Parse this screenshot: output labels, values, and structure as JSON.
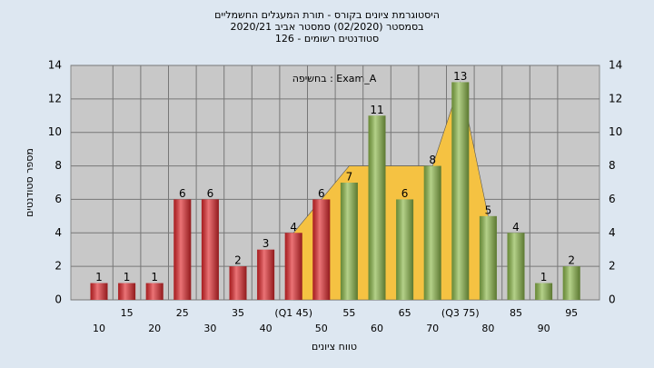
{
  "chart_data": {
    "type": "bar",
    "title": "היסטוגרמת ציונים בקורס - תורת המעגלים החשמליים",
    "subtitle": "בסמסטר  (02/2020)  סמסטר אביב 2020/21",
    "subtitle2": "סטודנטים רשומים - 126",
    "annotation": "בחשיפה : Exam_A",
    "x_label": "טווח ציונים",
    "y_label": "מספר סטודנטים",
    "categories": [
      "10",
      "15",
      "20",
      "25",
      "30",
      "35",
      "40",
      "(Q1 45)",
      "50",
      "55",
      "60",
      "65",
      "70",
      "(Q3 75)",
      "80",
      "85",
      "90",
      "95"
    ],
    "values": [
      1,
      1,
      1,
      6,
      6,
      2,
      3,
      4,
      6,
      7,
      11,
      6,
      8,
      13,
      5,
      4,
      1,
      2
    ],
    "colors": [
      "#e0282c",
      "#e0282c",
      "#e0282c",
      "#e0282c",
      "#e0282c",
      "#e0282c",
      "#e0282c",
      "#e0282c",
      "#e0282c",
      "#8cb84a",
      "#8cb84a",
      "#8cb84a",
      "#8cb84a",
      "#8cb84a",
      "#8cb84a",
      "#8cb84a",
      "#8cb84a",
      "#8cb84a"
    ],
    "area_values": [
      null,
      null,
      null,
      null,
      null,
      null,
      null,
      4,
      6,
      8,
      8,
      8,
      8,
      13,
      5,
      null,
      null,
      null
    ],
    "area_color": "#f5c242",
    "ylim": [
      0,
      14
    ],
    "yticks": [
      0,
      2,
      4,
      6,
      8,
      10,
      12,
      14
    ],
    "grid": true
  }
}
